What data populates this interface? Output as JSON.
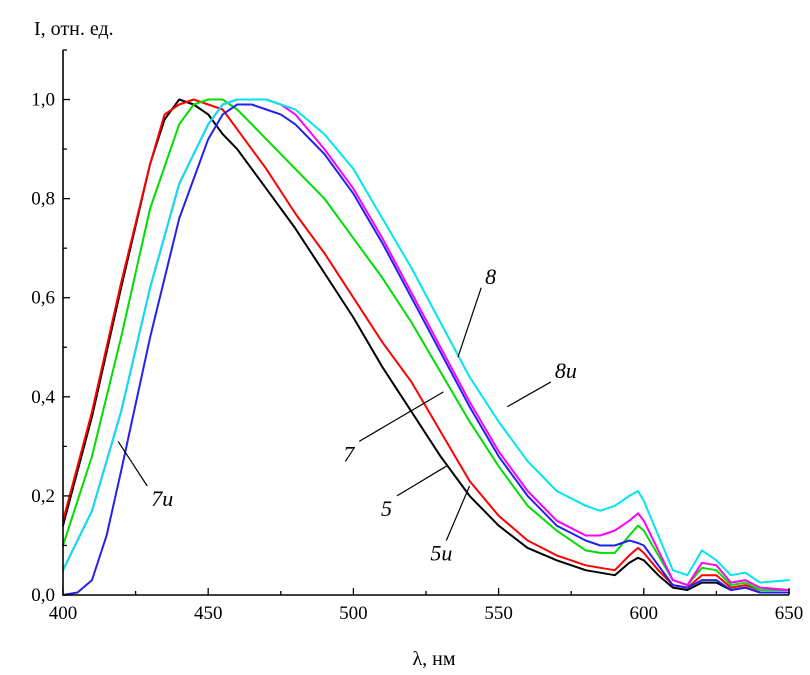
{
  "chart_data": {
    "type": "line",
    "title": "",
    "xlabel": "λ, нм",
    "ylabel": "I, отн. ед.",
    "xlim": [
      400,
      650
    ],
    "ylim": [
      0,
      1.1
    ],
    "x_ticks": [
      "400",
      "450",
      "500",
      "550",
      "600",
      "650"
    ],
    "y_ticks": [
      "0,0",
      "0,2",
      "0,4",
      "0,6",
      "0,8",
      "1,0"
    ],
    "grid": false,
    "legend": "none",
    "series": [
      {
        "name": "5",
        "color": "#000000",
        "x": [
          400,
          410,
          420,
          430,
          435,
          440,
          445,
          450,
          455,
          460,
          470,
          480,
          490,
          500,
          510,
          520,
          530,
          540,
          550,
          560,
          570,
          580,
          585,
          590,
          595,
          598,
          600,
          605,
          610,
          615,
          620,
          625,
          630,
          635,
          640,
          650
        ],
        "y": [
          0.14,
          0.36,
          0.62,
          0.87,
          0.96,
          1.0,
          0.99,
          0.97,
          0.93,
          0.9,
          0.82,
          0.74,
          0.65,
          0.56,
          0.46,
          0.37,
          0.28,
          0.2,
          0.14,
          0.095,
          0.07,
          0.05,
          0.045,
          0.04,
          0.065,
          0.075,
          0.07,
          0.04,
          0.015,
          0.01,
          0.025,
          0.025,
          0.01,
          0.015,
          0.005,
          0.005
        ]
      },
      {
        "name": "5u",
        "color": "#ff0000",
        "x": [
          400,
          410,
          420,
          430,
          435,
          440,
          445,
          450,
          455,
          460,
          470,
          480,
          490,
          500,
          510,
          520,
          530,
          540,
          550,
          560,
          570,
          580,
          585,
          590,
          595,
          598,
          600,
          605,
          610,
          615,
          620,
          625,
          630,
          635,
          640,
          650
        ],
        "y": [
          0.15,
          0.37,
          0.63,
          0.87,
          0.97,
          0.99,
          1.0,
          0.99,
          0.98,
          0.94,
          0.86,
          0.77,
          0.69,
          0.6,
          0.51,
          0.43,
          0.33,
          0.23,
          0.16,
          0.11,
          0.08,
          0.06,
          0.055,
          0.05,
          0.08,
          0.095,
          0.085,
          0.05,
          0.02,
          0.015,
          0.04,
          0.04,
          0.015,
          0.02,
          0.01,
          0.01
        ]
      },
      {
        "name": "7",
        "color": "#00dd00",
        "x": [
          400,
          410,
          420,
          430,
          440,
          445,
          450,
          455,
          460,
          465,
          470,
          480,
          490,
          500,
          510,
          520,
          530,
          540,
          550,
          560,
          570,
          580,
          585,
          590,
          595,
          598,
          600,
          605,
          610,
          615,
          620,
          625,
          630,
          635,
          640,
          650
        ],
        "y": [
          0.1,
          0.28,
          0.52,
          0.78,
          0.95,
          0.99,
          1.0,
          1.0,
          0.98,
          0.95,
          0.92,
          0.86,
          0.8,
          0.72,
          0.64,
          0.55,
          0.45,
          0.35,
          0.26,
          0.18,
          0.13,
          0.09,
          0.085,
          0.085,
          0.12,
          0.14,
          0.13,
          0.08,
          0.03,
          0.02,
          0.055,
          0.05,
          0.02,
          0.025,
          0.01,
          0.01
        ]
      },
      {
        "name": "7u",
        "color": "#2222ee",
        "x": [
          400,
          405,
          410,
          415,
          420,
          430,
          440,
          450,
          455,
          460,
          465,
          470,
          475,
          480,
          490,
          500,
          510,
          520,
          530,
          540,
          550,
          560,
          570,
          580,
          585,
          590,
          595,
          598,
          600,
          605,
          610,
          615,
          620,
          625,
          630,
          635,
          640,
          650
        ],
        "y": [
          0.0,
          0.005,
          0.03,
          0.12,
          0.25,
          0.52,
          0.76,
          0.92,
          0.97,
          0.99,
          0.99,
          0.98,
          0.97,
          0.95,
          0.89,
          0.81,
          0.71,
          0.6,
          0.49,
          0.38,
          0.28,
          0.2,
          0.14,
          0.11,
          0.1,
          0.1,
          0.11,
          0.105,
          0.1,
          0.06,
          0.02,
          0.015,
          0.03,
          0.03,
          0.01,
          0.015,
          0.005,
          0.005
        ]
      },
      {
        "name": "8",
        "color": "#ff00ff",
        "x": [
          400,
          410,
          420,
          430,
          440,
          450,
          455,
          460,
          465,
          470,
          475,
          480,
          490,
          500,
          510,
          520,
          530,
          540,
          550,
          560,
          570,
          580,
          585,
          590,
          595,
          598,
          600,
          605,
          610,
          615,
          620,
          625,
          630,
          635,
          640,
          650
        ],
        "y": [
          0.05,
          0.17,
          0.37,
          0.62,
          0.83,
          0.95,
          0.99,
          1.0,
          1.0,
          1.0,
          0.99,
          0.97,
          0.9,
          0.82,
          0.72,
          0.61,
          0.5,
          0.39,
          0.29,
          0.21,
          0.15,
          0.12,
          0.12,
          0.13,
          0.15,
          0.165,
          0.15,
          0.09,
          0.03,
          0.02,
          0.065,
          0.06,
          0.025,
          0.03,
          0.015,
          0.01
        ]
      },
      {
        "name": "8u",
        "color": "#00e5ee",
        "x": [
          400,
          410,
          420,
          430,
          440,
          450,
          455,
          460,
          465,
          470,
          475,
          480,
          490,
          500,
          510,
          520,
          530,
          540,
          550,
          560,
          570,
          580,
          585,
          590,
          595,
          598,
          600,
          605,
          610,
          615,
          620,
          625,
          630,
          635,
          640,
          650
        ],
        "y": [
          0.05,
          0.17,
          0.37,
          0.62,
          0.83,
          0.95,
          0.99,
          1.0,
          1.0,
          1.0,
          0.99,
          0.98,
          0.93,
          0.86,
          0.76,
          0.66,
          0.55,
          0.44,
          0.35,
          0.27,
          0.21,
          0.18,
          0.17,
          0.18,
          0.2,
          0.21,
          0.19,
          0.12,
          0.05,
          0.04,
          0.09,
          0.07,
          0.04,
          0.045,
          0.025,
          0.03
        ]
      }
    ],
    "annotations": [
      {
        "label": "8",
        "x": 544,
        "y": 0.62,
        "lx": 536,
        "ly": 0.48
      },
      {
        "label": "8u",
        "x": 568,
        "y": 0.43,
        "lx": 553,
        "ly": 0.38
      },
      {
        "label": "7",
        "x": 502,
        "y": 0.31,
        "lx": 531,
        "ly": 0.41
      },
      {
        "label": "5",
        "x": 515,
        "y": 0.2,
        "lx": 532,
        "ly": 0.26
      },
      {
        "label": "5u",
        "x": 532,
        "y": 0.11,
        "lx": 540,
        "ly": 0.22
      },
      {
        "label": "7u",
        "x": 429,
        "y": 0.22,
        "lx": 419,
        "ly": 0.31
      }
    ]
  }
}
